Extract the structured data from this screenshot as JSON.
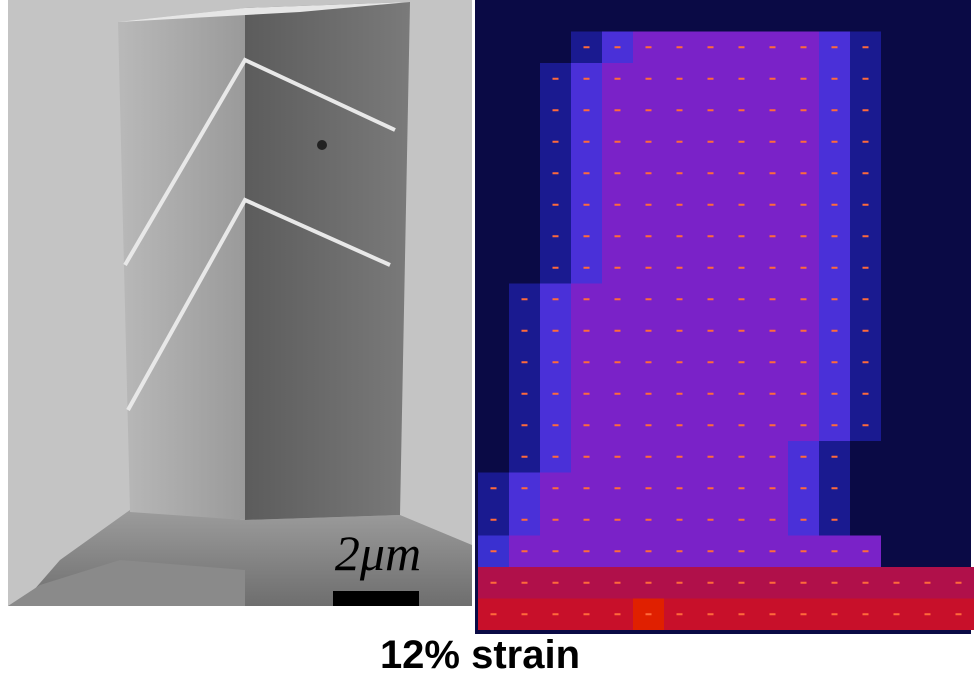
{
  "scale_bar": {
    "label": "2μm"
  },
  "caption": "12% strain"
}
